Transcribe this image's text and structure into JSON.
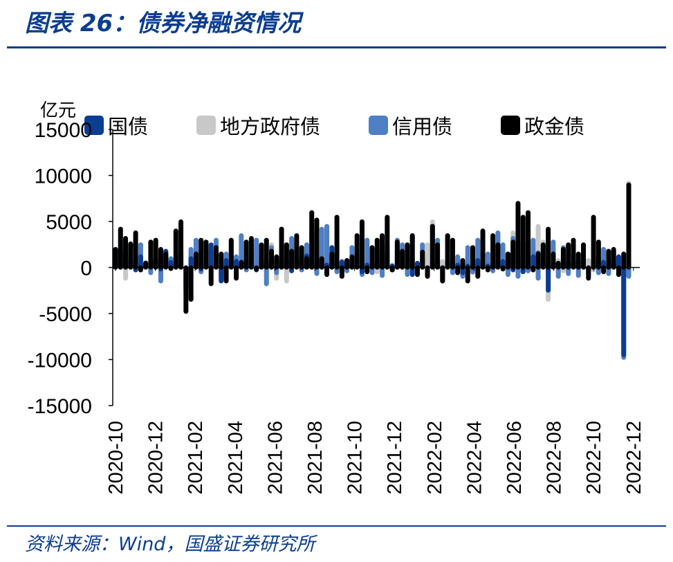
{
  "title": "图表 26：债券净融资情况",
  "source": "资料来源：Wind，国盛证券研究所",
  "unit": "亿元",
  "chart_data": {
    "type": "bar",
    "ylim": [
      -15000,
      15000
    ],
    "yticks": [
      15000,
      10000,
      5000,
      0,
      -5000,
      -10000,
      -15000
    ],
    "xticks": [
      "2020-10",
      "2020-12",
      "2021-02",
      "2021-04",
      "2021-06",
      "2021-08",
      "2021-10",
      "2021-12",
      "2022-02",
      "2022-04",
      "2022-06",
      "2022-08",
      "2022-10",
      "2022-12"
    ],
    "legend_position": "top",
    "series": [
      {
        "name": "国债",
        "color": "#0b3d91",
        "values": [
          500,
          2000,
          1500,
          800,
          -300,
          1200,
          200,
          600,
          1000,
          -200,
          1800,
          600,
          300,
          1500,
          -2500,
          1000,
          1200,
          -200,
          600,
          2500,
          1800,
          -1500,
          800,
          600,
          700,
          400,
          900,
          1500,
          -300,
          1000,
          600,
          200,
          800,
          1500,
          900,
          -400,
          1200,
          800,
          1300,
          600,
          500,
          700,
          300,
          2200,
          400,
          600,
          700,
          900,
          300,
          -500,
          300,
          800,
          600,
          800,
          1500,
          200,
          1700,
          300,
          1100,
          -800,
          500,
          900,
          -700,
          500,
          800,
          -1500,
          500,
          600,
          300,
          -600,
          200,
          700,
          800,
          500,
          200,
          600,
          2500,
          700,
          1500,
          -300,
          1000,
          -500,
          900,
          1200,
          1600,
          500,
          -2500,
          600,
          500,
          1300,
          600,
          400,
          700,
          300,
          -200,
          800,
          1100,
          600,
          400,
          800,
          1200,
          -9500,
          9000
        ]
      },
      {
        "name": "地方政府债",
        "color": "#c8c8c8",
        "values": [
          300,
          1000,
          -1200,
          800,
          500,
          800,
          600,
          400,
          900,
          700,
          1000,
          200,
          300,
          400,
          -2000,
          800,
          1200,
          500,
          1500,
          600,
          300,
          -800,
          600,
          700,
          1200,
          2000,
          1500,
          500,
          2200,
          1400,
          800,
          2500,
          -1200,
          400,
          -1500,
          500,
          2000,
          300,
          2500,
          3500,
          -500,
          2800,
          3000,
          500,
          -200,
          300,
          500,
          1000,
          2000,
          -600,
          1200,
          400,
          -500,
          1500,
          2000,
          300,
          800,
          1500,
          500,
          1000,
          300,
          800,
          2500,
          5000,
          300,
          700,
          800,
          -500,
          300,
          -800,
          500,
          -600,
          1200,
          600,
          500,
          400,
          3500,
          2000,
          1500,
          3800,
          4500,
          1500,
          5500,
          2500,
          4500,
          2800,
          -3500,
          500,
          800,
          -400,
          1500,
          900,
          500,
          600,
          800,
          -300,
          200,
          500,
          300,
          600,
          400,
          -8000,
          9200
        ]
      },
      {
        "name": "信用债",
        "color": "#4f7fc4",
        "values": [
          2000,
          3000,
          1500,
          2500,
          -200,
          2500,
          500,
          -600,
          800,
          -1500,
          1500,
          1000,
          1200,
          2800,
          -2000,
          2000,
          3000,
          -500,
          2500,
          2000,
          3000,
          -1200,
          1500,
          2800,
          1200,
          3500,
          -300,
          2500,
          3000,
          1800,
          -1800,
          2200,
          -600,
          3000,
          2500,
          3200,
          2800,
          -300,
          2500,
          4000,
          -700,
          4200,
          4500,
          1500,
          -500,
          700,
          -400,
          2200,
          1500,
          -800,
          3000,
          -600,
          2000,
          -900,
          2500,
          -300,
          3000,
          2500,
          -800,
          3500,
          -400,
          2500,
          -700,
          4500,
          3000,
          -900,
          3500,
          -600,
          1200,
          -1000,
          2200,
          -500,
          3000,
          4000,
          1500,
          -400,
          3800,
          2500,
          -800,
          3200,
          -1000,
          2800,
          -400,
          3000,
          -1200,
          2500,
          -800,
          2800,
          -1000,
          2200,
          -700,
          2000,
          -900,
          1500,
          -800,
          2500,
          -600,
          2000,
          -700,
          1800,
          -800,
          -9800,
          -1000
        ]
      },
      {
        "name": "政金债",
        "color": "#000000",
        "values": [
          2000,
          4200,
          3200,
          2600,
          3800,
          -300,
          500,
          2800,
          3000,
          2000,
          1500,
          0,
          4000,
          5000,
          -4800,
          -3500,
          1500,
          3000,
          2800,
          -1800,
          2200,
          1500,
          -1500,
          3000,
          -1200,
          600,
          2800,
          3200,
          -200,
          2500,
          3000,
          1800,
          1200,
          4200,
          2500,
          1800,
          3500,
          2200,
          1000,
          6000,
          5200,
          1000,
          -800,
          1500,
          5500,
          -1000,
          800,
          1200,
          3500,
          5000,
          -500,
          2200,
          3000,
          3500,
          5500,
          -300,
          2800,
          1800,
          2500,
          3500,
          -800,
          1700,
          -1000,
          4500,
          2500,
          -1500,
          3500,
          3000,
          -600,
          800,
          -1500,
          2200,
          -1000,
          4000,
          -300,
          3500,
          2500,
          -200,
          1500,
          2800,
          7000,
          5500,
          6000,
          -300,
          1500,
          2500,
          4200,
          1500,
          500,
          2000,
          2500,
          3000,
          1500,
          2500,
          -1200,
          5500,
          2800,
          -500,
          1800,
          2000,
          -800,
          1500,
          9000
        ]
      }
    ]
  }
}
